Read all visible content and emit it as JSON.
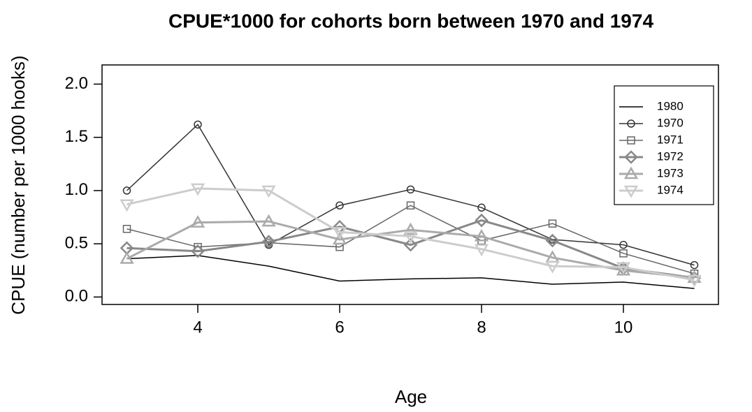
{
  "chart_data": {
    "type": "line",
    "title": "CPUE*1000 for cohorts born between 1970 and 1974",
    "x_label": "Age",
    "y_label": "CPUE (number per 1000 hooks)",
    "x": [
      3,
      4,
      5,
      6,
      7,
      8,
      9,
      10,
      11
    ],
    "xlim": [
      2.65,
      11.34
    ],
    "xticks": [
      4,
      6,
      8,
      10
    ],
    "ylim": [
      -0.07,
      2.18
    ],
    "yticks": [
      {
        "value": 0,
        "label": "0.0"
      },
      0.5,
      {
        "value": 1,
        "label": "1.0"
      },
      1.5,
      {
        "value": 2,
        "label": "2.0"
      }
    ],
    "grid": false,
    "legend_position": "top-right",
    "series": [
      {
        "name": "1980",
        "color": "#000000",
        "marker": "none",
        "line_width": 1.5,
        "values": [
          0.36,
          0.39,
          0.29,
          0.15,
          0.17,
          0.18,
          0.12,
          0.14,
          0.08
        ]
      },
      {
        "name": "1970",
        "color": "#333333",
        "marker": "circle",
        "line_width": 1.5,
        "values": [
          1.0,
          1.62,
          0.49,
          0.86,
          1.01,
          0.84,
          0.54,
          0.49,
          0.3
        ]
      },
      {
        "name": "1971",
        "color": "#666666",
        "marker": "square",
        "line_width": 1.5,
        "values": [
          0.64,
          0.47,
          0.51,
          0.47,
          0.86,
          0.53,
          0.69,
          0.41,
          0.22
        ]
      },
      {
        "name": "1972",
        "color": "#888888",
        "marker": "diamond",
        "line_width": 3,
        "values": [
          0.46,
          0.43,
          0.52,
          0.66,
          0.49,
          0.72,
          0.53,
          0.27,
          0.18
        ]
      },
      {
        "name": "1973",
        "color": "#aaaaaa",
        "marker": "triangle-up",
        "line_width": 3,
        "values": [
          0.36,
          0.7,
          0.71,
          0.54,
          0.63,
          0.57,
          0.37,
          0.25,
          0.18
        ]
      },
      {
        "name": "1974",
        "color": "#cccccc",
        "marker": "triangle-down",
        "line_width": 3,
        "values": [
          0.87,
          1.02,
          1.0,
          0.61,
          0.57,
          0.45,
          0.29,
          0.28,
          0.16
        ]
      }
    ]
  }
}
